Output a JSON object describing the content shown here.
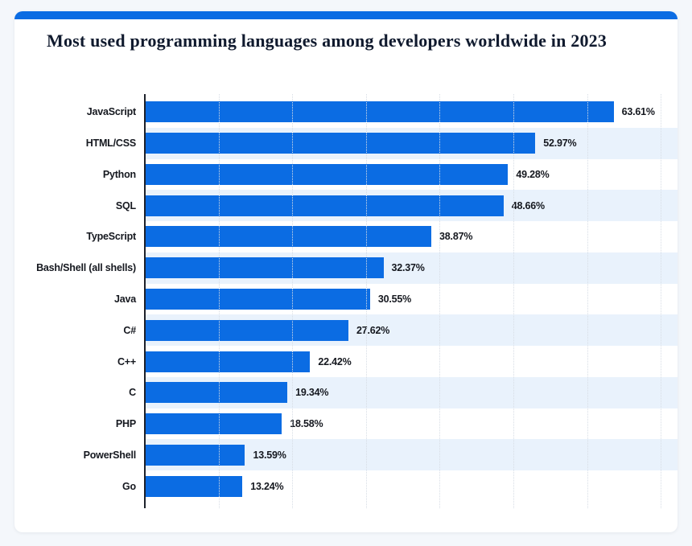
{
  "page": {
    "background_color": "#f4f7fb"
  },
  "card": {
    "background_color": "#ffffff",
    "accent_color": "#0b6ce3"
  },
  "title": "Most used programming languages among developers worldwide in 2023",
  "chart_data": {
    "type": "bar",
    "orientation": "horizontal",
    "title": "Most used programming languages among developers worldwide in 2023",
    "categories": [
      "JavaScript",
      "HTML/CSS",
      "Python",
      "SQL",
      "TypeScript",
      "Bash/Shell (all shells)",
      "Java",
      "C#",
      "C++",
      "C",
      "PHP",
      "PowerShell",
      "Go"
    ],
    "values": [
      63.61,
      52.97,
      49.28,
      48.66,
      38.87,
      32.37,
      30.55,
      27.62,
      22.42,
      19.34,
      18.58,
      13.59,
      13.24
    ],
    "value_labels": [
      "63.61%",
      "52.97%",
      "49.28%",
      "48.66%",
      "38.87%",
      "32.37%",
      "30.55%",
      "27.62%",
      "22.42%",
      "19.34%",
      "18.58%",
      "13.59%",
      "13.24%"
    ],
    "xlabel": "",
    "ylabel": "",
    "xlim": [
      0,
      72.2
    ],
    "gridline_step_percent": 10,
    "gridline_max_percent": 70,
    "grid": "vertical-dotted",
    "legend": "none",
    "bar_color": "#0b6ce3",
    "stripe_color": "#e9f2fc",
    "striped_row_indices": [
      1,
      3,
      5,
      7,
      9,
      11
    ]
  }
}
